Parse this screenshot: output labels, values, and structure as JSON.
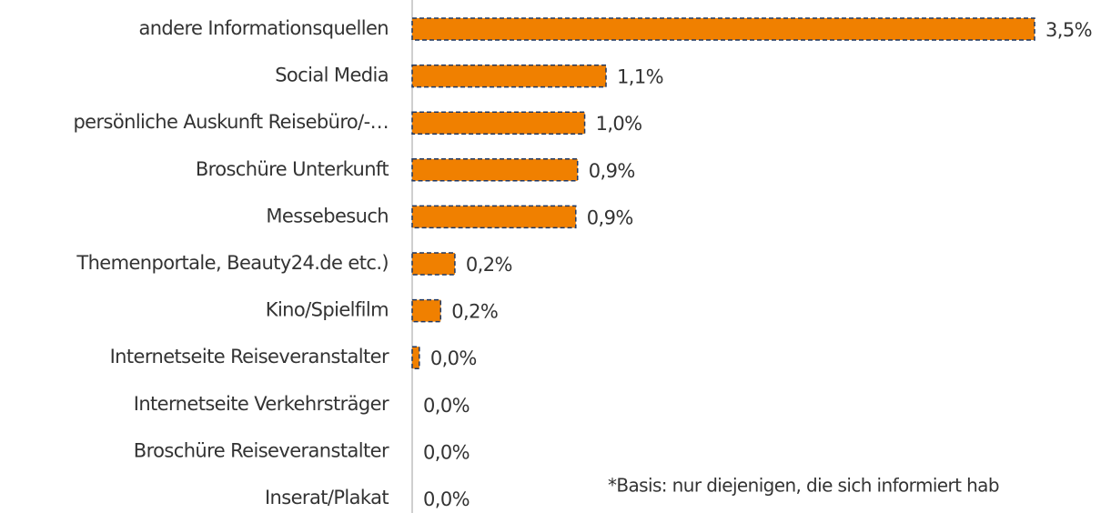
{
  "chart_data": {
    "type": "barh",
    "categories": [
      "andere Informationsquellen",
      "Social Media",
      "persönliche Auskunft Reisebüro/-…",
      "Broschüre Unterkunft",
      "Messebesuch",
      "Themenportale, Beauty24.de etc.)",
      "Kino/Spielfilm",
      "Internetseite Reiseveranstalter",
      "Internetseite Verkehrsträger",
      "Broschüre Reiseveranstalter",
      "Inserat/Plakat"
    ],
    "values": [
      3.5,
      1.09,
      0.97,
      0.93,
      0.92,
      0.24,
      0.16,
      0.04,
      0,
      0,
      0
    ],
    "value_labels": [
      "3,5%",
      "1,1%",
      "1,0%",
      "0,9%",
      "0,9%",
      "0,2%",
      "0,2%",
      "0,0%",
      "0,0%",
      "0,0%",
      "0,0%"
    ],
    "color": "#f08000",
    "xlim": [
      0,
      3.5
    ],
    "annotations": [
      "*Basis: nur diejenigen, die sich informiert hab"
    ]
  }
}
